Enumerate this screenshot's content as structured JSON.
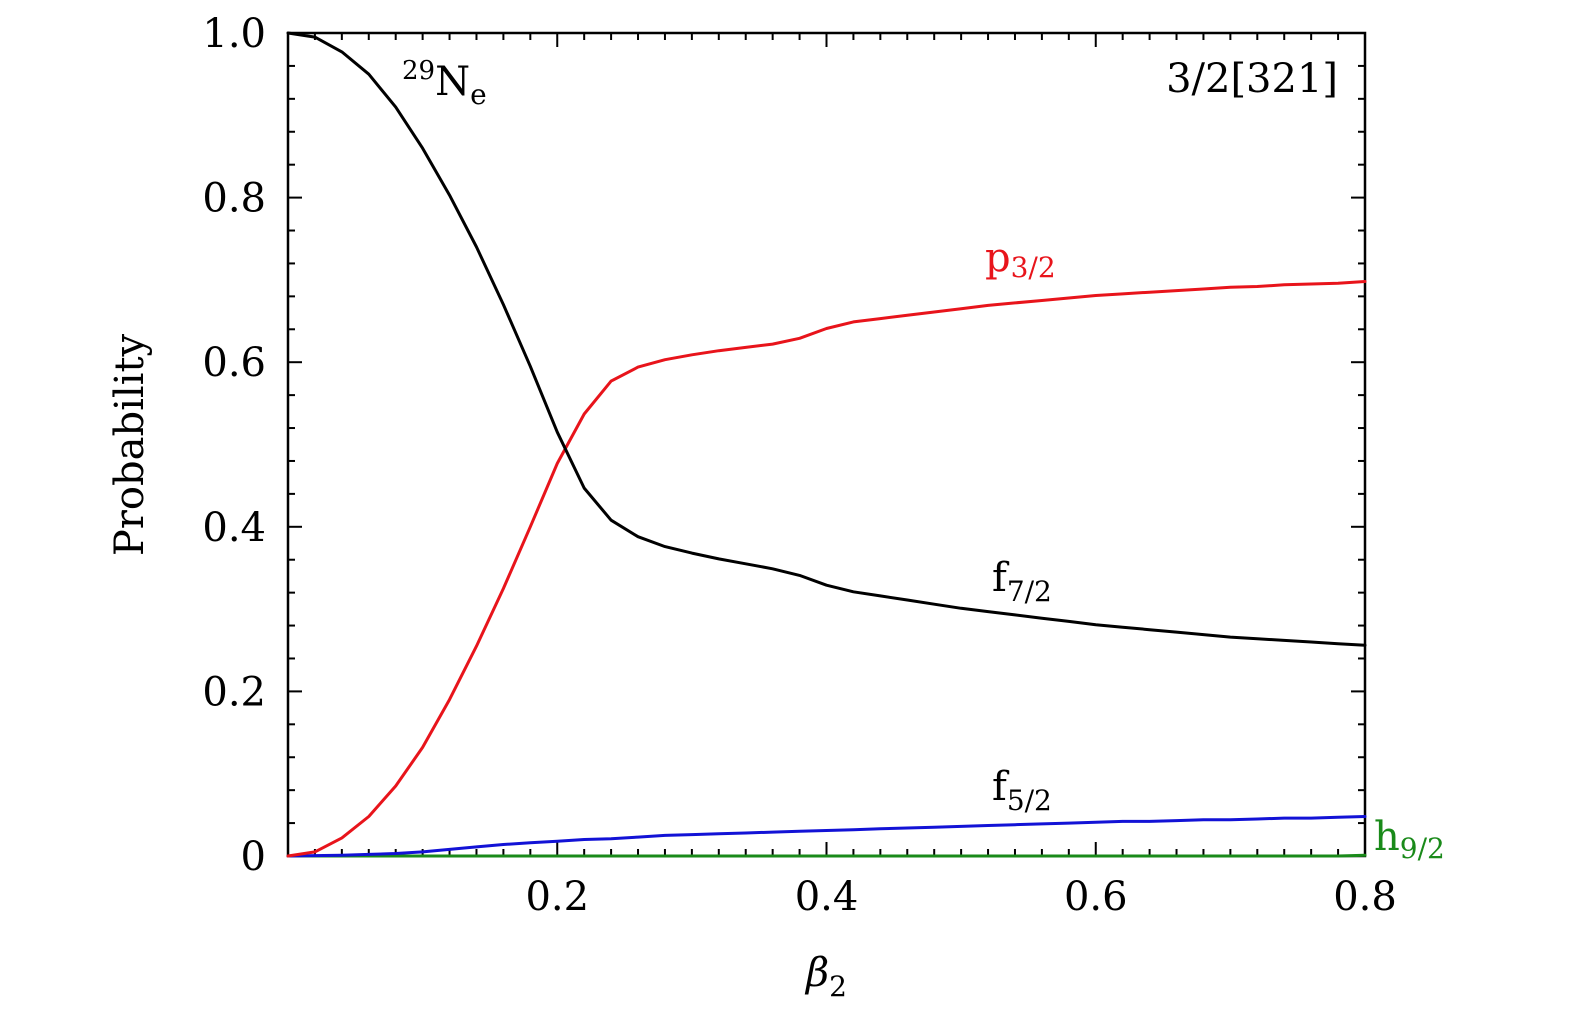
{
  "chart_data": {
    "type": "line",
    "xlabel": "β",
    "xlabel_sub": "2",
    "ylabel": "Probability",
    "xlim": [
      0,
      0.8
    ],
    "ylim": [
      0,
      1.0
    ],
    "grid": false,
    "x_ticks": [
      {
        "value": 0.2,
        "label": "0.2"
      },
      {
        "value": 0.4,
        "label": "0.4"
      },
      {
        "value": 0.6,
        "label": "0.6"
      },
      {
        "value": 0.8,
        "label": "0.8"
      }
    ],
    "y_ticks": [
      {
        "value": 0,
        "label": "0"
      },
      {
        "value": 0.2,
        "label": "0.2"
      },
      {
        "value": 0.4,
        "label": "0.4"
      },
      {
        "value": 0.6,
        "label": "0.6"
      },
      {
        "value": 0.8,
        "label": "0.8"
      },
      {
        "value": 1.0,
        "label": "1.0"
      }
    ],
    "x": [
      0.0,
      0.02,
      0.04,
      0.06,
      0.08,
      0.1,
      0.12,
      0.14,
      0.16,
      0.18,
      0.2,
      0.22,
      0.24,
      0.26,
      0.28,
      0.3,
      0.32,
      0.34,
      0.36,
      0.38,
      0.4,
      0.42,
      0.44,
      0.46,
      0.48,
      0.5,
      0.52,
      0.54,
      0.56,
      0.58,
      0.6,
      0.62,
      0.64,
      0.66,
      0.68,
      0.7,
      0.72,
      0.74,
      0.76,
      0.78,
      0.8
    ],
    "series": [
      {
        "name": "f",
        "name_sub": "7/2",
        "color": "#000000",
        "values": [
          1.0,
          0.995,
          0.977,
          0.95,
          0.91,
          0.86,
          0.803,
          0.74,
          0.67,
          0.595,
          0.515,
          0.447,
          0.408,
          0.388,
          0.376,
          0.368,
          0.361,
          0.355,
          0.349,
          0.341,
          0.329,
          0.321,
          0.316,
          0.311,
          0.306,
          0.301,
          0.297,
          0.293,
          0.289,
          0.285,
          0.281,
          0.278,
          0.275,
          0.272,
          0.269,
          0.266,
          0.264,
          0.262,
          0.26,
          0.258,
          0.256
        ]
      },
      {
        "name": "p",
        "name_sub": "3/2",
        "color": "#e8141b",
        "values": [
          0.0,
          0.005,
          0.022,
          0.048,
          0.085,
          0.132,
          0.19,
          0.255,
          0.325,
          0.4,
          0.477,
          0.537,
          0.577,
          0.594,
          0.603,
          0.609,
          0.614,
          0.618,
          0.622,
          0.629,
          0.641,
          0.649,
          0.653,
          0.657,
          0.661,
          0.665,
          0.669,
          0.672,
          0.675,
          0.678,
          0.681,
          0.683,
          0.685,
          0.687,
          0.689,
          0.691,
          0.692,
          0.694,
          0.695,
          0.696,
          0.698
        ]
      },
      {
        "name": "f",
        "name_sub": "5/2",
        "color": "#1212d6",
        "values": [
          0.0,
          0.0005,
          0.001,
          0.002,
          0.003,
          0.005,
          0.008,
          0.011,
          0.014,
          0.016,
          0.018,
          0.02,
          0.021,
          0.023,
          0.025,
          0.026,
          0.027,
          0.028,
          0.029,
          0.03,
          0.031,
          0.032,
          0.033,
          0.034,
          0.035,
          0.036,
          0.037,
          0.038,
          0.039,
          0.04,
          0.041,
          0.042,
          0.042,
          0.043,
          0.044,
          0.044,
          0.045,
          0.046,
          0.046,
          0.047,
          0.048
        ]
      },
      {
        "name": "h",
        "name_sub": "9/2",
        "color": "#1a8a1a",
        "values": [
          0.0,
          0.0,
          0.0,
          0.0,
          0.0,
          0.0,
          0.0,
          0.0,
          0.0,
          0.0,
          0.0,
          0.0,
          0.0,
          0.0,
          0.0,
          0.0,
          0.0,
          0.0,
          0.0,
          0.0,
          0.0,
          0.0,
          0.0,
          0.0,
          0.0,
          0.0,
          0.0,
          0.0,
          0.0,
          0.0,
          0.0,
          0.0,
          0.0,
          0.0,
          0.0,
          0.0,
          0.0,
          0.0,
          0.0,
          0.0,
          0.001
        ]
      }
    ],
    "annotations": {
      "nucleus_mass": "29",
      "nucleus_base": "N",
      "nucleus_sub": "e",
      "orbital": "3/2[321]"
    }
  }
}
